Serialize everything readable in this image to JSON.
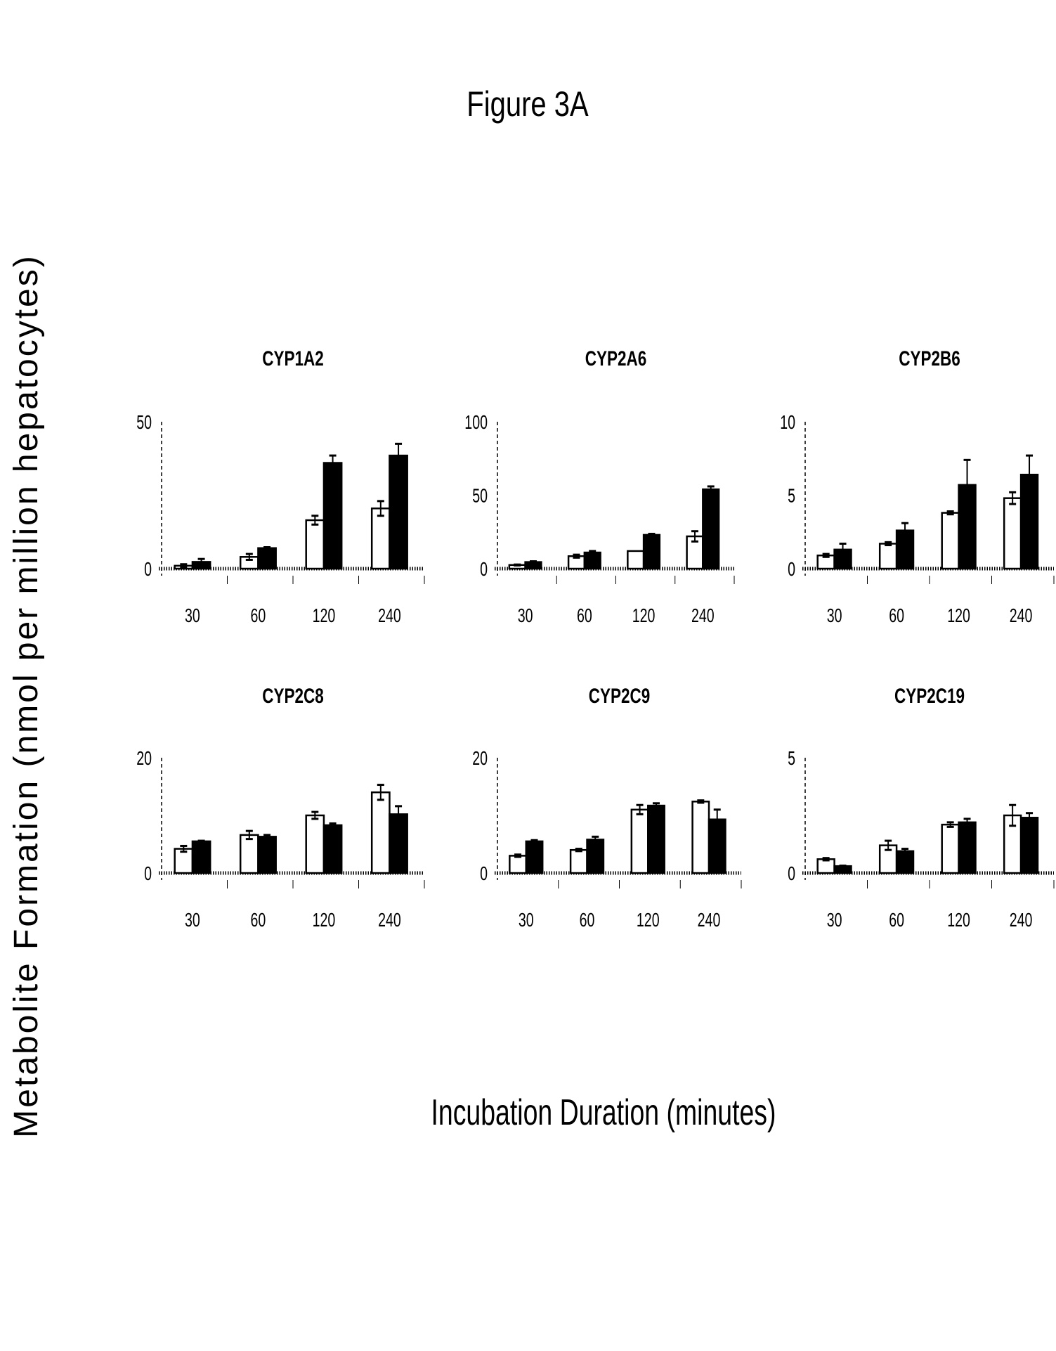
{
  "chart_data": {
    "type": "bar",
    "title": "Figure 3A",
    "xlabel": "Incubation Duration (minutes)",
    "ylabel": "Metabolite Formation (nmol per million hepatocytes)",
    "categories": [
      "30",
      "60",
      "120",
      "240"
    ],
    "series_styles": [
      {
        "fill": "#ffffff",
        "stroke": "#000000"
      },
      {
        "fill": "#000000",
        "stroke": "#000000"
      }
    ],
    "grid": false,
    "legend": "none",
    "panels": [
      {
        "title": "CYP1A2",
        "ylim": [
          0,
          50
        ],
        "yticks": [
          "0",
          "50"
        ],
        "series": [
          {
            "name": "white",
            "values": [
              1,
              4,
              16.5,
              20.5
            ],
            "errors": [
              0.5,
              1,
              1.5,
              2.5
            ]
          },
          {
            "name": "black",
            "values": [
              2.3,
              7,
              36,
              38.5
            ],
            "errors": [
              1,
              0.3,
              2.5,
              4
            ]
          }
        ]
      },
      {
        "title": "CYP2A6",
        "ylim": [
          0,
          100
        ],
        "yticks": [
          "0",
          "50",
          "100"
        ],
        "series": [
          {
            "name": "white",
            "values": [
              2.5,
              8.5,
              12,
              22
            ],
            "errors": [
              0.3,
              1,
              0,
              3.5
            ]
          },
          {
            "name": "black",
            "values": [
              4.5,
              11,
              23,
              54
            ],
            "errors": [
              0.5,
              1,
              0.7,
              2
            ]
          }
        ]
      },
      {
        "title": "CYP2B6",
        "ylim": [
          0,
          10
        ],
        "yticks": [
          "0",
          "5",
          "10"
        ],
        "series": [
          {
            "name": "white",
            "values": [
              0.9,
              1.7,
              3.8,
              4.8
            ],
            "errors": [
              0.1,
              0.1,
              0.1,
              0.4
            ]
          },
          {
            "name": "black",
            "values": [
              1.3,
              2.6,
              5.7,
              6.4
            ],
            "errors": [
              0.4,
              0.5,
              1.7,
              1.3
            ]
          }
        ]
      },
      {
        "title": "CYP2C8",
        "ylim": [
          0,
          20
        ],
        "yticks": [
          "0",
          "20"
        ],
        "series": [
          {
            "name": "white",
            "values": [
              4.2,
              6.6,
              10,
              14
            ],
            "errors": [
              0.5,
              0.7,
              0.6,
              1.3
            ]
          },
          {
            "name": "black",
            "values": [
              5.5,
              6.3,
              8.3,
              10.2
            ],
            "errors": [
              0.1,
              0.3,
              0.3,
              1.4
            ]
          }
        ]
      },
      {
        "title": "CYP2C9",
        "ylim": [
          0,
          20
        ],
        "yticks": [
          "0",
          "20"
        ],
        "series": [
          {
            "name": "white",
            "values": [
              3,
              4,
              11,
              12.4
            ],
            "errors": [
              0.2,
              0.2,
              0.8,
              0.2
            ]
          },
          {
            "name": "black",
            "values": [
              5.5,
              5.8,
              11.7,
              9.3
            ],
            "errors": [
              0.2,
              0.5,
              0.4,
              1.7
            ]
          }
        ]
      },
      {
        "title": "CYP2C19",
        "ylim": [
          0,
          5
        ],
        "yticks": [
          "0",
          "5"
        ],
        "series": [
          {
            "name": "white",
            "values": [
              0.6,
              1.2,
              2.1,
              2.5
            ],
            "errors": [
              0.05,
              0.2,
              0.1,
              0.45
            ]
          },
          {
            "name": "black",
            "values": [
              0.3,
              0.95,
              2.2,
              2.4
            ],
            "errors": [
              0.02,
              0.1,
              0.15,
              0.2
            ]
          }
        ]
      }
    ]
  }
}
